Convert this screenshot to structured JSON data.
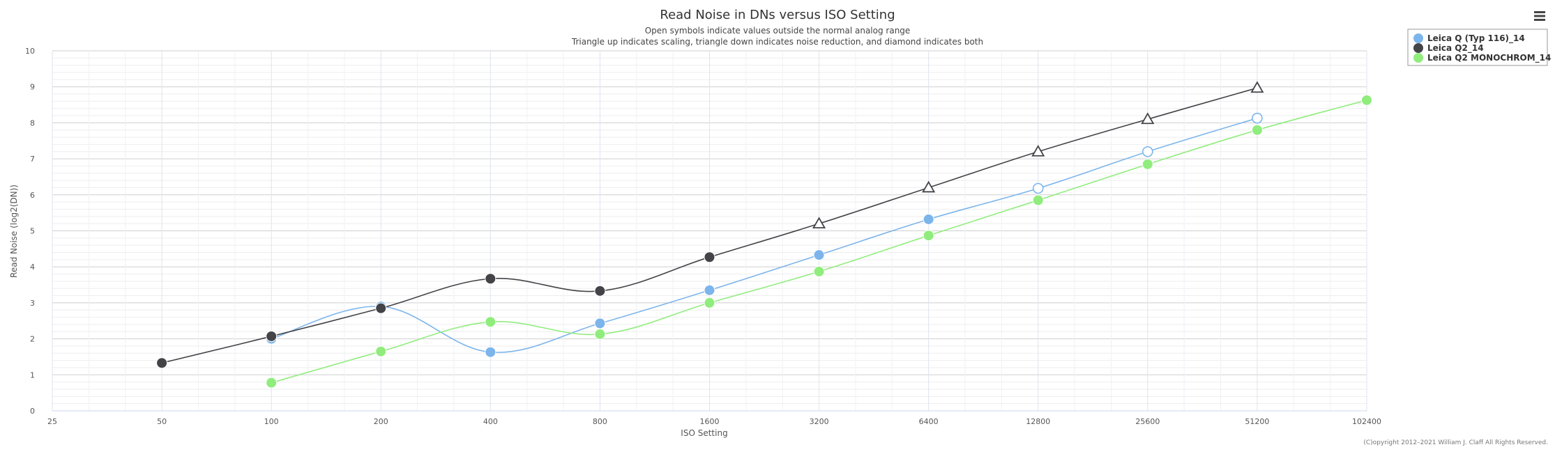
{
  "chart_data": {
    "type": "line",
    "title": "Read Noise in DNs versus ISO Setting",
    "subtitle": [
      "Open symbols indicate values outside the normal analog range",
      "Triangle up indicates scaling, triangle down indicates noise reduction, and diamond indicates both"
    ],
    "xlabel": "ISO Setting",
    "ylabel": "Read Noise (log2(DN))",
    "x_scale": "log2",
    "x_ticks": [
      25,
      50,
      100,
      200,
      400,
      800,
      1600,
      3200,
      6400,
      12800,
      25600,
      51200,
      102400
    ],
    "y_ticks": [
      0,
      1,
      2,
      3,
      4,
      5,
      6,
      7,
      8,
      9,
      10
    ],
    "xlim": [
      25,
      102400
    ],
    "ylim": [
      0,
      10
    ],
    "grid": true,
    "legend_position": "top-right",
    "series": [
      {
        "name": "Leica Q (Typ 116)_14",
        "color": "#7cb5ec",
        "points": [
          {
            "x": 100,
            "y": 2.0,
            "marker": "circle"
          },
          {
            "x": 200,
            "y": 2.9,
            "marker": "circle"
          },
          {
            "x": 400,
            "y": 1.63,
            "marker": "circle"
          },
          {
            "x": 800,
            "y": 2.43,
            "marker": "circle"
          },
          {
            "x": 1600,
            "y": 3.35,
            "marker": "circle"
          },
          {
            "x": 3200,
            "y": 4.33,
            "marker": "circle"
          },
          {
            "x": 6400,
            "y": 5.32,
            "marker": "circle"
          },
          {
            "x": 12800,
            "y": 6.18,
            "marker": "circle-open"
          },
          {
            "x": 25600,
            "y": 7.2,
            "marker": "circle-open"
          },
          {
            "x": 51200,
            "y": 8.13,
            "marker": "circle-open"
          }
        ]
      },
      {
        "name": "Leica Q2_14",
        "color": "#434348",
        "points": [
          {
            "x": 50,
            "y": 1.33,
            "marker": "circle"
          },
          {
            "x": 100,
            "y": 2.07,
            "marker": "circle"
          },
          {
            "x": 200,
            "y": 2.85,
            "marker": "circle"
          },
          {
            "x": 400,
            "y": 3.67,
            "marker": "circle"
          },
          {
            "x": 800,
            "y": 3.33,
            "marker": "circle"
          },
          {
            "x": 1600,
            "y": 4.27,
            "marker": "circle"
          },
          {
            "x": 3200,
            "y": 5.2,
            "marker": "triangle-up-open"
          },
          {
            "x": 6400,
            "y": 6.2,
            "marker": "triangle-up-open"
          },
          {
            "x": 12800,
            "y": 7.2,
            "marker": "triangle-up-open"
          },
          {
            "x": 25600,
            "y": 8.1,
            "marker": "triangle-up-open"
          },
          {
            "x": 51200,
            "y": 8.97,
            "marker": "triangle-up-open"
          }
        ]
      },
      {
        "name": "Leica Q2 MONOCHROM_14",
        "color": "#90ed7d",
        "points": [
          {
            "x": 100,
            "y": 0.78,
            "marker": "circle"
          },
          {
            "x": 200,
            "y": 1.65,
            "marker": "circle"
          },
          {
            "x": 400,
            "y": 2.47,
            "marker": "circle"
          },
          {
            "x": 800,
            "y": 2.13,
            "marker": "circle"
          },
          {
            "x": 1600,
            "y": 3.0,
            "marker": "circle"
          },
          {
            "x": 3200,
            "y": 3.87,
            "marker": "circle"
          },
          {
            "x": 6400,
            "y": 4.87,
            "marker": "circle"
          },
          {
            "x": 12800,
            "y": 5.85,
            "marker": "circle"
          },
          {
            "x": 25600,
            "y": 6.85,
            "marker": "circle"
          },
          {
            "x": 51200,
            "y": 7.8,
            "marker": "circle"
          },
          {
            "x": 102400,
            "y": 8.63,
            "marker": "circle"
          }
        ]
      }
    ]
  },
  "credit": "(C)opyright 2012–2021 William J. Claff All Rights Reserved.",
  "menu_icon": "hamburger-menu-icon"
}
